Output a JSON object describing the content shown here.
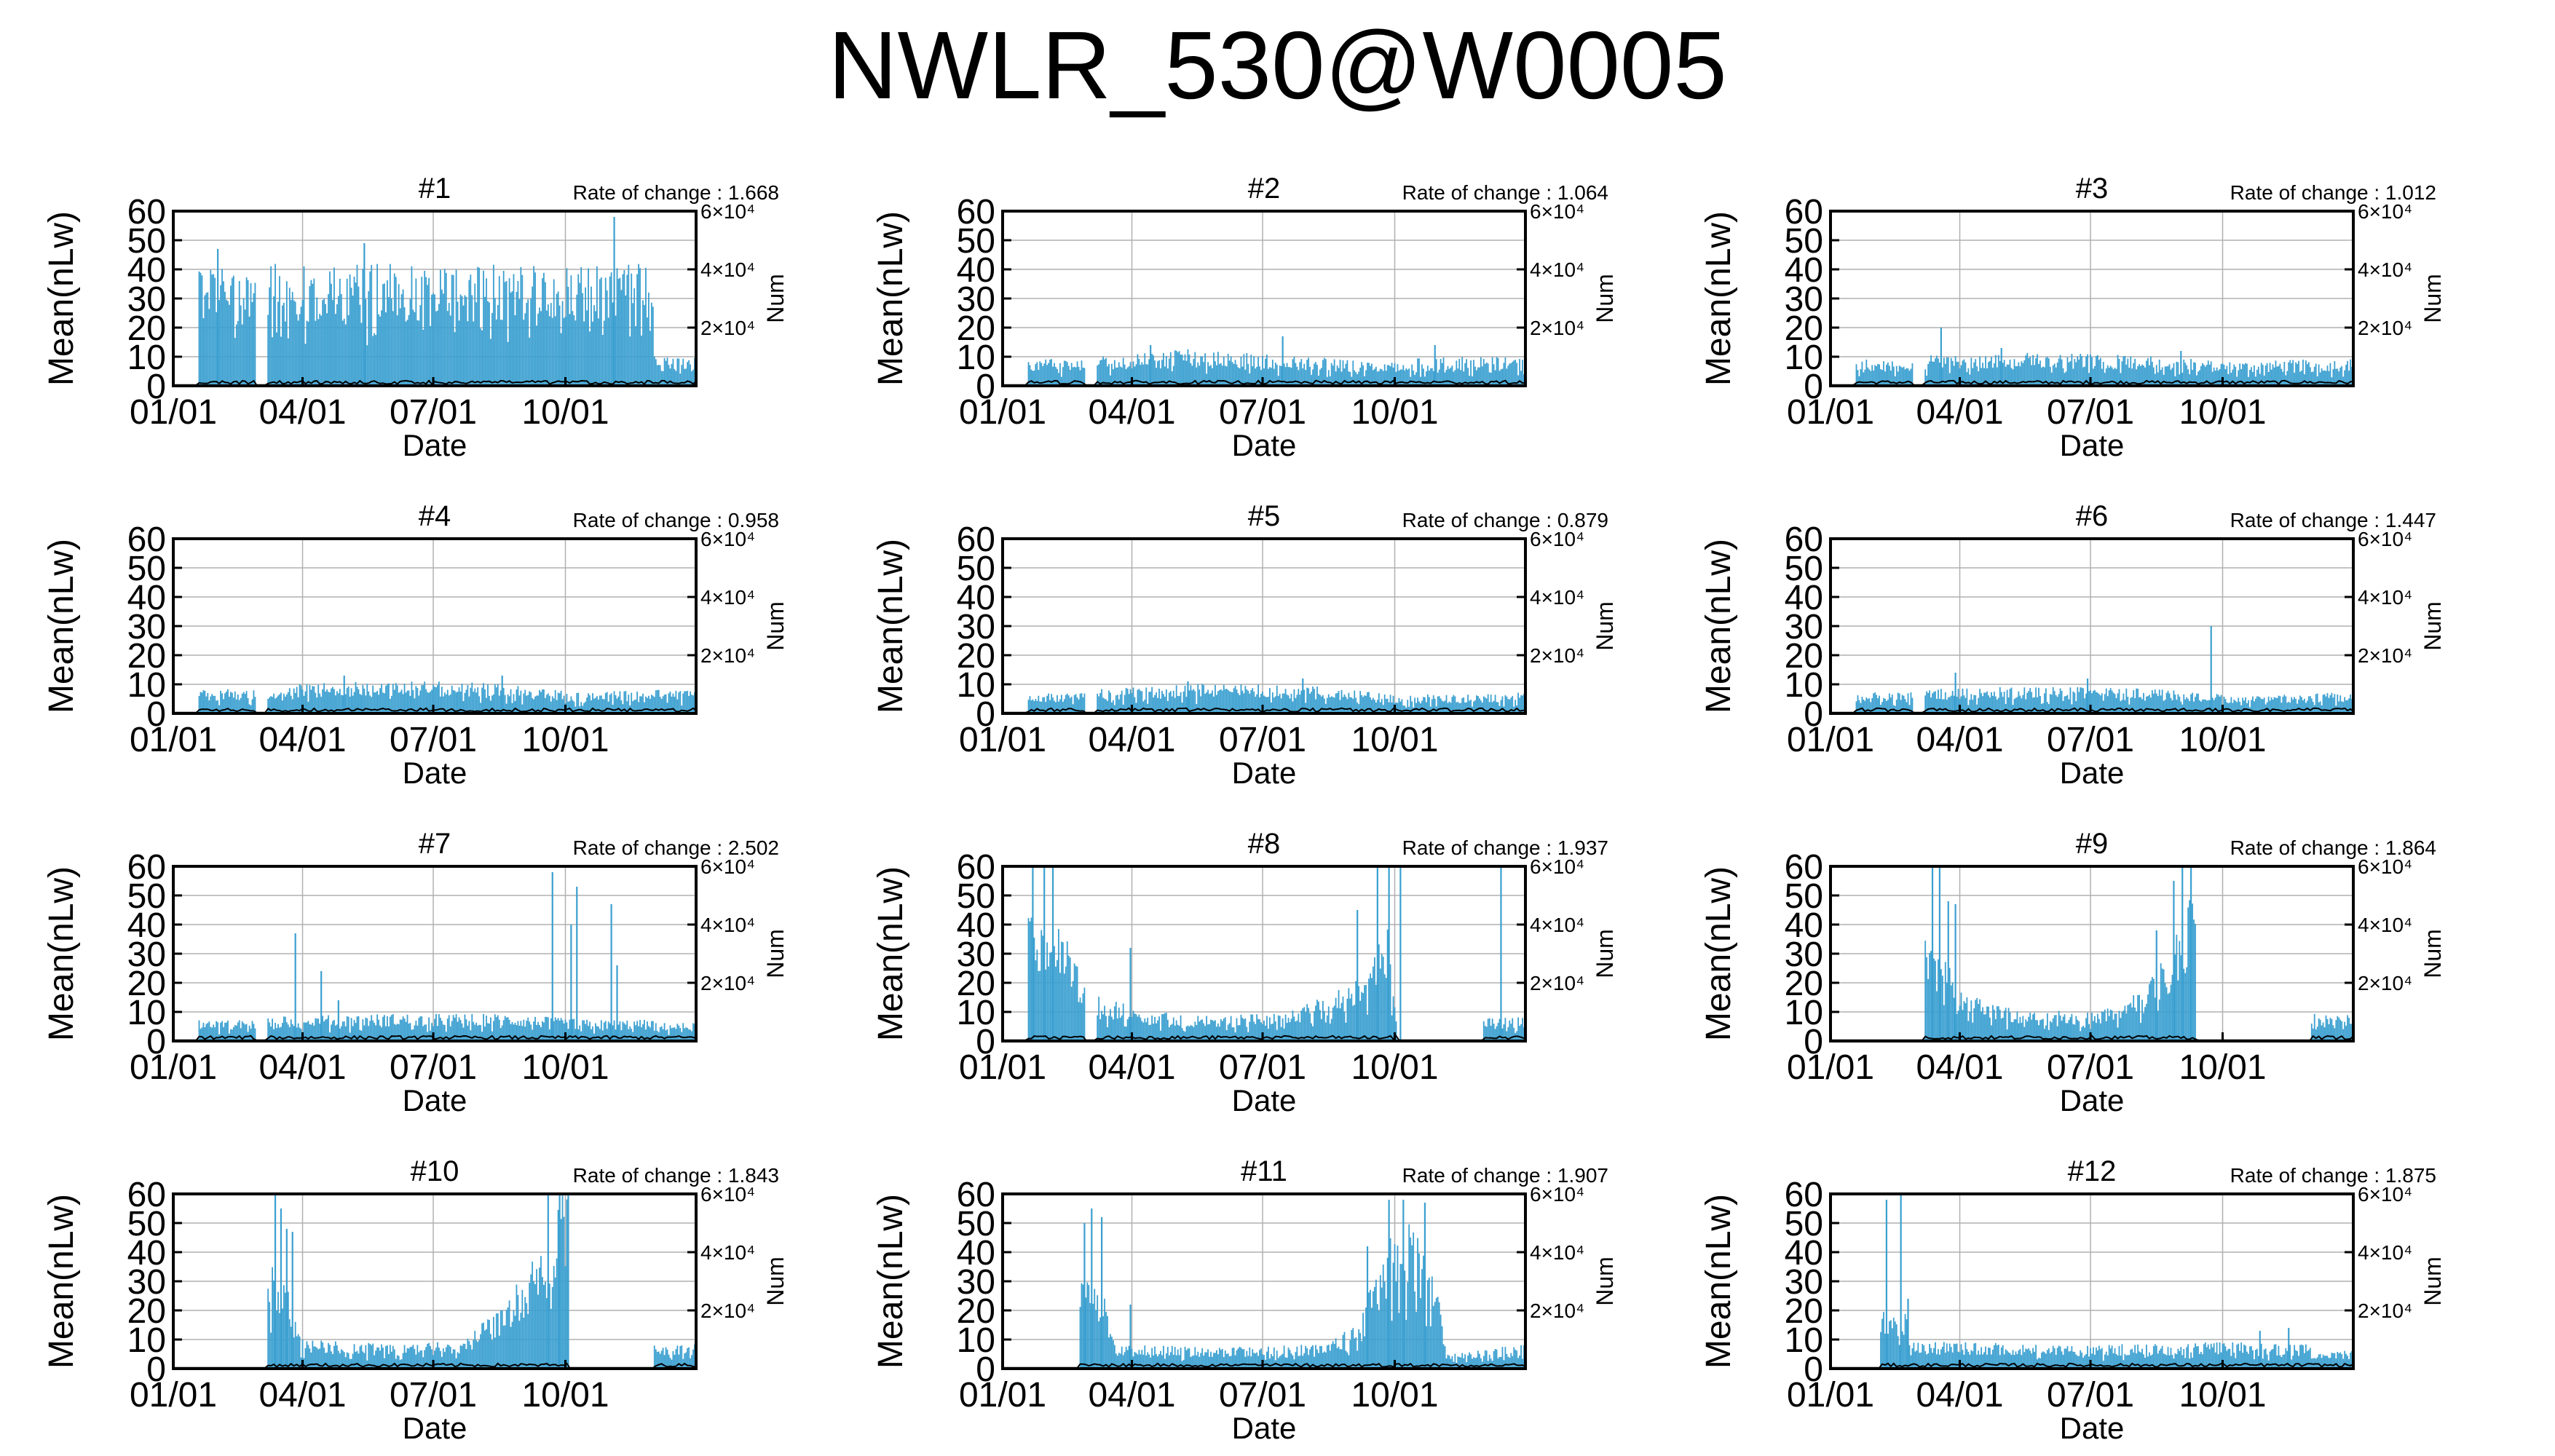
{
  "title": "NWLR_530@W0005",
  "colors": {
    "mean_bar": "#3a9fd0",
    "num_line": "#000000",
    "grid": "#b0b0b0",
    "axis": "#000000"
  },
  "shared_axes": {
    "xlabel": "Date",
    "ylabel_left": "Mean(nLw)",
    "ylabel_right": "Num",
    "x_tick_labels": [
      "01/01",
      "04/01",
      "07/01",
      "10/01"
    ],
    "y_left_ticks": [
      "0",
      "10",
      "20",
      "30",
      "40",
      "50",
      "60"
    ],
    "y_right_ticks": [
      "2×10⁴",
      "4×10⁴",
      "6×10⁴"
    ]
  },
  "chart_data": [
    {
      "type": "bar",
      "title": "#1",
      "rate_label": "Rate of change : 1.668",
      "ylim": [
        0,
        60
      ],
      "y2lim": [
        0,
        60000
      ],
      "x_range_days": [
        1,
        365
      ],
      "grid": true,
      "profile": [
        [
          1,
          0
        ],
        [
          18,
          0
        ],
        [
          19,
          40
        ],
        [
          58,
          40
        ],
        [
          59,
          0
        ],
        [
          66,
          0
        ],
        [
          67,
          40
        ],
        [
          335,
          40
        ],
        [
          336,
          10
        ],
        [
          365,
          10
        ]
      ],
      "spikes": [
        [
          32,
          47
        ],
        [
          134,
          49
        ],
        [
          308,
          58
        ]
      ]
    },
    {
      "type": "bar",
      "title": "#2",
      "rate_label": "Rate of change : 1.064",
      "ylim": [
        0,
        60
      ],
      "y2lim": [
        0,
        60000
      ],
      "x_range_days": [
        1,
        365
      ],
      "grid": true,
      "profile": [
        [
          1,
          0
        ],
        [
          18,
          0
        ],
        [
          19,
          9
        ],
        [
          58,
          9
        ],
        [
          59,
          0
        ],
        [
          66,
          0
        ],
        [
          67,
          10
        ],
        [
          130,
          12
        ],
        [
          200,
          10
        ],
        [
          260,
          8
        ],
        [
          320,
          10
        ],
        [
          365,
          9
        ]
      ],
      "spikes": [
        [
          104,
          14
        ],
        [
          196,
          17
        ],
        [
          302,
          14
        ]
      ]
    },
    {
      "type": "bar",
      "title": "#3",
      "rate_label": "Rate of change : 1.012",
      "ylim": [
        0,
        60
      ],
      "y2lim": [
        0,
        60000
      ],
      "x_range_days": [
        1,
        365
      ],
      "grid": true,
      "profile": [
        [
          1,
          0
        ],
        [
          18,
          0
        ],
        [
          19,
          9
        ],
        [
          58,
          9
        ],
        [
          59,
          0
        ],
        [
          66,
          0
        ],
        [
          67,
          10
        ],
        [
          140,
          11
        ],
        [
          220,
          10
        ],
        [
          280,
          8
        ],
        [
          365,
          9
        ]
      ],
      "spikes": [
        [
          78,
          20
        ],
        [
          120,
          13
        ],
        [
          245,
          12
        ]
      ]
    },
    {
      "type": "bar",
      "title": "#4",
      "rate_label": "Rate of change : 0.958",
      "ylim": [
        0,
        60
      ],
      "y2lim": [
        0,
        60000
      ],
      "x_range_days": [
        1,
        365
      ],
      "grid": true,
      "profile": [
        [
          1,
          0
        ],
        [
          18,
          0
        ],
        [
          19,
          8
        ],
        [
          58,
          8
        ],
        [
          59,
          0
        ],
        [
          66,
          0
        ],
        [
          67,
          9
        ],
        [
          150,
          11
        ],
        [
          230,
          10
        ],
        [
          280,
          7
        ],
        [
          365,
          8
        ]
      ],
      "spikes": [
        [
          120,
          13
        ],
        [
          230,
          13
        ]
      ]
    },
    {
      "type": "bar",
      "title": "#5",
      "rate_label": "Rate of change : 0.879",
      "ylim": [
        0,
        60
      ],
      "y2lim": [
        0,
        60000
      ],
      "x_range_days": [
        1,
        365
      ],
      "grid": true,
      "profile": [
        [
          1,
          0
        ],
        [
          18,
          0
        ],
        [
          19,
          7
        ],
        [
          58,
          7
        ],
        [
          59,
          0
        ],
        [
          66,
          0
        ],
        [
          67,
          8
        ],
        [
          150,
          10
        ],
        [
          220,
          9
        ],
        [
          280,
          6
        ],
        [
          365,
          7
        ]
      ],
      "spikes": [
        [
          130,
          11
        ],
        [
          210,
          12
        ]
      ]
    },
    {
      "type": "bar",
      "title": "#6",
      "rate_label": "Rate of change : 1.447",
      "ylim": [
        0,
        60
      ],
      "y2lim": [
        0,
        60000
      ],
      "x_range_days": [
        1,
        365
      ],
      "grid": true,
      "profile": [
        [
          1,
          0
        ],
        [
          18,
          0
        ],
        [
          19,
          7
        ],
        [
          58,
          7
        ],
        [
          59,
          0
        ],
        [
          66,
          0
        ],
        [
          67,
          8
        ],
        [
          150,
          9
        ],
        [
          230,
          8
        ],
        [
          280,
          6
        ],
        [
          365,
          7
        ]
      ],
      "spikes": [
        [
          88,
          14
        ],
        [
          180,
          12
        ],
        [
          266,
          30
        ]
      ]
    },
    {
      "type": "bar",
      "title": "#7",
      "rate_label": "Rate of change : 2.502",
      "ylim": [
        0,
        60
      ],
      "y2lim": [
        0,
        60000
      ],
      "x_range_days": [
        1,
        365
      ],
      "grid": true,
      "profile": [
        [
          1,
          0
        ],
        [
          18,
          0
        ],
        [
          19,
          7
        ],
        [
          58,
          7
        ],
        [
          59,
          0
        ],
        [
          66,
          0
        ],
        [
          67,
          8
        ],
        [
          150,
          9
        ],
        [
          230,
          9
        ],
        [
          290,
          7
        ],
        [
          335,
          7
        ],
        [
          336,
          6
        ],
        [
          365,
          6
        ]
      ],
      "spikes": [
        [
          86,
          37
        ],
        [
          104,
          24
        ],
        [
          116,
          14
        ],
        [
          265,
          58
        ],
        [
          278,
          40
        ],
        [
          282,
          53
        ],
        [
          306,
          47
        ],
        [
          310,
          26
        ]
      ]
    },
    {
      "type": "bar",
      "title": "#8",
      "rate_label": "Rate of change : 1.937",
      "ylim": [
        0,
        60
      ],
      "y2lim": [
        0,
        60000
      ],
      "x_range_days": [
        1,
        365
      ],
      "grid": true,
      "profile": [
        [
          1,
          0
        ],
        [
          18,
          0
        ],
        [
          19,
          45
        ],
        [
          40,
          40
        ],
        [
          58,
          20
        ],
        [
          59,
          0
        ],
        [
          66,
          0
        ],
        [
          67,
          15
        ],
        [
          100,
          10
        ],
        [
          150,
          8
        ],
        [
          200,
          10
        ],
        [
          240,
          18
        ],
        [
          260,
          30
        ],
        [
          270,
          40
        ],
        [
          276,
          0
        ],
        [
          335,
          0
        ],
        [
          336,
          8
        ],
        [
          365,
          8
        ]
      ],
      "spikes": [
        [
          22,
          60
        ],
        [
          30,
          60
        ],
        [
          36,
          60
        ],
        [
          90,
          32
        ],
        [
          248,
          45
        ],
        [
          262,
          60
        ],
        [
          270,
          60
        ],
        [
          278,
          60
        ],
        [
          348,
          60
        ]
      ]
    },
    {
      "type": "bar",
      "title": "#9",
      "rate_label": "Rate of change : 1.864",
      "ylim": [
        0,
        60
      ],
      "y2lim": [
        0,
        60000
      ],
      "x_range_days": [
        1,
        365
      ],
      "grid": true,
      "profile": [
        [
          1,
          0
        ],
        [
          66,
          0
        ],
        [
          67,
          40
        ],
        [
          80,
          30
        ],
        [
          95,
          15
        ],
        [
          140,
          10
        ],
        [
          190,
          10
        ],
        [
          210,
          15
        ],
        [
          230,
          25
        ],
        [
          245,
          40
        ],
        [
          255,
          55
        ],
        [
          256,
          0
        ],
        [
          335,
          0
        ],
        [
          336,
          9
        ],
        [
          365,
          9
        ]
      ],
      "spikes": [
        [
          72,
          60
        ],
        [
          77,
          60
        ],
        [
          83,
          48
        ],
        [
          88,
          47
        ],
        [
          228,
          38
        ],
        [
          240,
          55
        ],
        [
          246,
          60
        ],
        [
          252,
          60
        ]
      ]
    },
    {
      "type": "bar",
      "title": "#10",
      "rate_label": "Rate of change : 1.843",
      "ylim": [
        0,
        60
      ],
      "y2lim": [
        0,
        60000
      ],
      "x_range_days": [
        1,
        365
      ],
      "grid": true,
      "profile": [
        [
          1,
          0
        ],
        [
          66,
          0
        ],
        [
          67,
          35
        ],
        [
          80,
          28
        ],
        [
          90,
          10
        ],
        [
          150,
          8
        ],
        [
          200,
          9
        ],
        [
          230,
          20
        ],
        [
          250,
          35
        ],
        [
          265,
          55
        ],
        [
          275,
          58
        ],
        [
          276,
          0
        ],
        [
          335,
          0
        ],
        [
          336,
          8
        ],
        [
          365,
          8
        ]
      ],
      "spikes": [
        [
          72,
          60
        ],
        [
          76,
          55
        ],
        [
          80,
          48
        ],
        [
          84,
          47
        ],
        [
          262,
          60
        ],
        [
          270,
          60
        ],
        [
          276,
          60
        ]
      ]
    },
    {
      "type": "bar",
      "title": "#11",
      "rate_label": "Rate of change : 1.907",
      "ylim": [
        0,
        60
      ],
      "y2lim": [
        0,
        60000
      ],
      "x_range_days": [
        1,
        365
      ],
      "grid": true,
      "profile": [
        [
          1,
          0
        ],
        [
          54,
          0
        ],
        [
          55,
          30
        ],
        [
          70,
          28
        ],
        [
          80,
          8
        ],
        [
          150,
          7
        ],
        [
          220,
          8
        ],
        [
          250,
          15
        ],
        [
          265,
          40
        ],
        [
          280,
          50
        ],
        [
          300,
          40
        ],
        [
          310,
          5
        ],
        [
          365,
          8
        ]
      ],
      "spikes": [
        [
          58,
          50
        ],
        [
          63,
          55
        ],
        [
          70,
          52
        ],
        [
          90,
          22
        ],
        [
          255,
          42
        ],
        [
          270,
          58
        ],
        [
          280,
          58
        ],
        [
          295,
          57
        ]
      ]
    },
    {
      "type": "bar",
      "title": "#12",
      "rate_label": "Rate of change : 1.875",
      "ylim": [
        0,
        60
      ],
      "y2lim": [
        0,
        60000
      ],
      "x_range_days": [
        1,
        365
      ],
      "grid": true,
      "profile": [
        [
          1,
          0
        ],
        [
          35,
          0
        ],
        [
          36,
          20
        ],
        [
          55,
          20
        ],
        [
          56,
          9
        ],
        [
          150,
          8
        ],
        [
          220,
          8
        ],
        [
          290,
          9
        ],
        [
          320,
          8
        ],
        [
          335,
          8
        ],
        [
          336,
          6
        ],
        [
          365,
          6
        ]
      ],
      "spikes": [
        [
          40,
          58
        ],
        [
          50,
          60
        ],
        [
          55,
          24
        ],
        [
          300,
          13
        ],
        [
          320,
          14
        ]
      ]
    }
  ]
}
